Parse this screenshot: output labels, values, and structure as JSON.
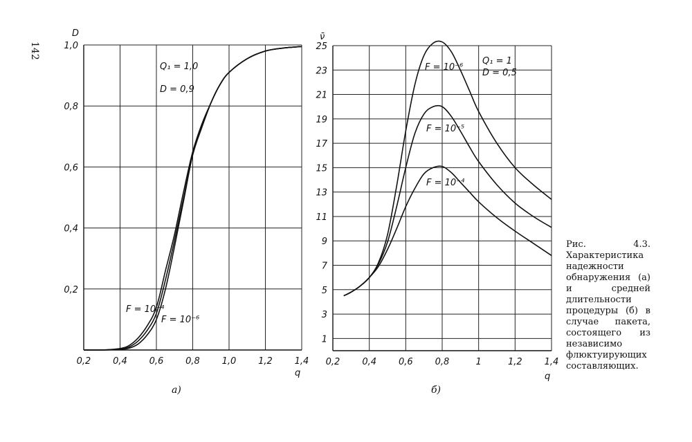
{
  "page_number": "142",
  "caption": "Рис. 4.3. Характеристика надежности обнаружения (а) и средней длительности процедуры (б) в случае пакета, состоящего из независимо флюктуирующих составляющих.",
  "chart_data": [
    {
      "type": "line",
      "panel_label": "а)",
      "ylabel": "D",
      "xlabel": "q",
      "xlim": [
        0.2,
        1.4
      ],
      "ylim": [
        0,
        1.0
      ],
      "x_ticks": [
        "0,2",
        "0,4",
        "0,6",
        "0,8",
        "1,0",
        "1,2",
        "1,4"
      ],
      "y_ticks": [
        "0,2",
        "0,4",
        "0,6",
        "0,8",
        "1,0"
      ],
      "grid": true,
      "annotations": [
        "Q₁ = 1,0",
        "D = 0,9",
        "F = 10⁻⁴",
        "F = 10⁻⁶"
      ],
      "series": [
        {
          "name": "F = 10⁻⁴",
          "x": [
            0.2,
            0.3,
            0.4,
            0.45,
            0.5,
            0.55,
            0.6,
            0.65,
            0.7,
            0.75,
            0.8,
            0.85,
            0.9,
            0.95,
            1.0,
            1.1,
            1.2,
            1.3,
            1.4
          ],
          "y": [
            0,
            0,
            0.005,
            0.015,
            0.04,
            0.08,
            0.14,
            0.26,
            0.38,
            0.52,
            0.65,
            0.74,
            0.81,
            0.87,
            0.91,
            0.955,
            0.98,
            0.99,
            0.995
          ]
        },
        {
          "name": "",
          "x": [
            0.2,
            0.3,
            0.4,
            0.45,
            0.5,
            0.55,
            0.6,
            0.65,
            0.7,
            0.75,
            0.8,
            0.85,
            0.9,
            0.95,
            1.0,
            1.1,
            1.2,
            1.3,
            1.4
          ],
          "y": [
            0,
            0,
            0.003,
            0.01,
            0.03,
            0.065,
            0.12,
            0.23,
            0.36,
            0.5,
            0.64,
            0.73,
            0.81,
            0.87,
            0.91,
            0.955,
            0.98,
            0.99,
            0.995
          ]
        },
        {
          "name": "F = 10⁻⁶",
          "x": [
            0.2,
            0.3,
            0.4,
            0.45,
            0.5,
            0.55,
            0.6,
            0.65,
            0.7,
            0.75,
            0.8,
            0.85,
            0.9,
            0.95,
            1.0,
            1.1,
            1.2,
            1.3,
            1.4
          ],
          "y": [
            0,
            0,
            0.002,
            0.006,
            0.02,
            0.05,
            0.1,
            0.2,
            0.34,
            0.49,
            0.64,
            0.73,
            0.81,
            0.87,
            0.91,
            0.955,
            0.98,
            0.99,
            0.995
          ]
        }
      ]
    },
    {
      "type": "line",
      "panel_label": "б)",
      "ylabel": "ν̄",
      "xlabel": "q",
      "xlim": [
        0.2,
        1.4
      ],
      "ylim": [
        0,
        25
      ],
      "x_ticks": [
        "0,2",
        "0,4",
        "0,6",
        "0,8",
        "1",
        "1,2",
        "1,4"
      ],
      "y_ticks": [
        "1",
        "3",
        "5",
        "7",
        "9",
        "11",
        "13",
        "15",
        "17",
        "19",
        "21",
        "23",
        "25"
      ],
      "grid": true,
      "annotations": [
        "Q₁ = 1",
        "D = 0,5",
        "F = 10⁻⁶",
        "F = 10⁻⁵",
        "F = 10⁻⁴"
      ],
      "series": [
        {
          "name": "F = 10⁻⁶",
          "x": [
            0.26,
            0.3,
            0.35,
            0.4,
            0.45,
            0.5,
            0.55,
            0.6,
            0.65,
            0.7,
            0.75,
            0.8,
            0.85,
            0.9,
            0.95,
            1.0,
            1.1,
            1.2,
            1.3,
            1.4
          ],
          "y": [
            4.5,
            4.8,
            5.3,
            6.0,
            7.2,
            9.5,
            13.5,
            18.0,
            21.8,
            24.2,
            25.2,
            25.3,
            24.5,
            23.0,
            21.3,
            19.6,
            17.0,
            15.0,
            13.6,
            12.4
          ]
        },
        {
          "name": "F = 10⁻⁵",
          "x": [
            0.26,
            0.3,
            0.35,
            0.4,
            0.45,
            0.5,
            0.55,
            0.6,
            0.65,
            0.7,
            0.75,
            0.8,
            0.85,
            0.9,
            0.95,
            1.0,
            1.1,
            1.2,
            1.3,
            1.4
          ],
          "y": [
            4.5,
            4.8,
            5.3,
            6.0,
            7.1,
            8.9,
            11.8,
            15.0,
            17.8,
            19.4,
            20.0,
            20.0,
            19.2,
            18.0,
            16.7,
            15.5,
            13.6,
            12.1,
            11.0,
            10.1
          ]
        },
        {
          "name": "F = 10⁻⁴",
          "x": [
            0.26,
            0.3,
            0.35,
            0.4,
            0.45,
            0.5,
            0.55,
            0.6,
            0.65,
            0.7,
            0.75,
            0.8,
            0.85,
            0.9,
            0.95,
            1.0,
            1.1,
            1.2,
            1.3,
            1.4
          ],
          "y": [
            4.5,
            4.8,
            5.3,
            6.0,
            6.9,
            8.3,
            10.0,
            11.8,
            13.3,
            14.5,
            15.0,
            15.1,
            14.6,
            13.8,
            13.0,
            12.2,
            10.9,
            9.8,
            8.8,
            7.8
          ]
        }
      ]
    }
  ]
}
